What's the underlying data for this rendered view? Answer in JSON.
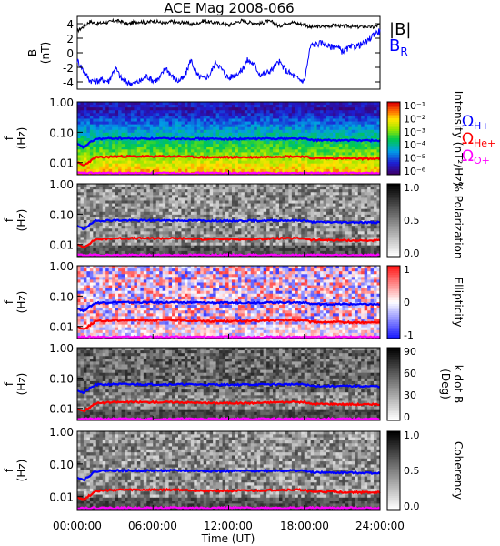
{
  "title": "ACE Mag 2008-066",
  "time_axis": {
    "label": "Time (UT)",
    "ticks": [
      "00:00:00",
      "06:00:00",
      "12:00:00",
      "18:00:00",
      "24:00:00"
    ],
    "range_hours": [
      0,
      24
    ]
  },
  "legend_b": {
    "total": "|B|",
    "radial": "B",
    "radial_sub": "R",
    "total_color": "#000000",
    "radial_color": "#0000ff"
  },
  "legend_cyclotron": [
    {
      "symbol": "Ω",
      "sub": "H+",
      "color": "#0000ff"
    },
    {
      "symbol": "Ω",
      "sub": "He+",
      "color": "#ff0000"
    },
    {
      "symbol": "Ω",
      "sub": "O+",
      "color": "#ff00ff"
    }
  ],
  "chart_data": [
    {
      "type": "line",
      "panel": "magnetic-field",
      "ylabel": "B",
      "yunit": "(nT)",
      "yticks": [
        "4",
        "2",
        "0",
        "-2",
        "-4"
      ],
      "ylim": [
        -5,
        5
      ],
      "series": [
        {
          "name": "|B|",
          "color": "#000000",
          "x": [
            0,
            0.5,
            1,
            1.5,
            2,
            2.5,
            3,
            3.5,
            4,
            4.5,
            5,
            5.5,
            6,
            6.5,
            7,
            7.5,
            8,
            8.5,
            9,
            9.5,
            10,
            10.5,
            11,
            11.5,
            12,
            12.5,
            13,
            13.5,
            14,
            14.5,
            15,
            15.5,
            16,
            16.5,
            17,
            17.5,
            18,
            18.5,
            19,
            19.5,
            20,
            20.5,
            21,
            21.5,
            22,
            22.5,
            23,
            23.5,
            24
          ],
          "values": [
            3.0,
            3.6,
            4.3,
            4.0,
            4.1,
            4.2,
            4.4,
            4.3,
            3.9,
            4.2,
            4.3,
            4.1,
            4.4,
            4.2,
            4.0,
            4.3,
            4.1,
            4.2,
            3.9,
            4.0,
            4.4,
            4.2,
            4.1,
            4.0,
            3.8,
            4.1,
            4.4,
            4.2,
            4.1,
            4.0,
            4.3,
            4.2,
            3.6,
            4.1,
            4.2,
            4.0,
            3.9,
            3.5,
            3.6,
            3.6,
            3.7,
            3.8,
            3.6,
            3.7,
            3.5,
            3.6,
            3.6,
            3.5,
            3.9
          ]
        },
        {
          "name": "B_R",
          "color": "#0000ff",
          "x": [
            0,
            0.5,
            1,
            1.5,
            2,
            2.5,
            3,
            3.5,
            4,
            4.5,
            5,
            5.5,
            6,
            6.5,
            7,
            7.5,
            8,
            8.5,
            9,
            9.5,
            10,
            10.5,
            11,
            11.5,
            12,
            12.5,
            13,
            13.5,
            14,
            14.5,
            15,
            15.5,
            16,
            16.5,
            17,
            17.5,
            18,
            18.5,
            19,
            19.5,
            20,
            20.5,
            21,
            21.5,
            22,
            22.5,
            23,
            23.5,
            24
          ],
          "values": [
            -1.0,
            -2.5,
            -3.8,
            -3.9,
            -3.7,
            -3.9,
            -2.0,
            -3.6,
            -4.1,
            -4.2,
            -3.9,
            -3.2,
            -3.8,
            -3.6,
            -2.0,
            -3.2,
            -3.9,
            -3.4,
            -0.9,
            -3.1,
            -3.6,
            -3.0,
            -1.2,
            -2.4,
            -3.5,
            -3.0,
            -2.5,
            -1.0,
            -1.6,
            -3.0,
            -2.8,
            -2.2,
            -1.2,
            -2.4,
            -3.0,
            -3.6,
            -3.9,
            1.0,
            1.2,
            1.4,
            0.8,
            0.9,
            0.2,
            0.6,
            0.9,
            1.1,
            1.5,
            2.6,
            3.0
          ]
        }
      ]
    },
    {
      "type": "heatmap",
      "panel": "power-spectrum",
      "ylabel": "f",
      "yunit": "(Hz)",
      "yscale": "log",
      "ylim": [
        0.004,
        1.0
      ],
      "yticks": [
        "1.00",
        "0.10",
        "0.01"
      ],
      "colorbar": {
        "label": "Intensity (nT²/Hz)",
        "scale": "log",
        "ticks": [
          "10⁻¹",
          "10⁻²",
          "10⁻³",
          "10⁻⁴",
          "10⁻⁵",
          "10⁻⁶"
        ],
        "palette": "rainbow"
      }
    },
    {
      "type": "heatmap",
      "panel": "polarization",
      "ylabel": "f",
      "yunit": "(Hz)",
      "yscale": "log",
      "ylim": [
        0.004,
        1.0
      ],
      "yticks": [
        "1.00",
        "0.10",
        "0.01"
      ],
      "colorbar": {
        "label": "% Polarization",
        "ticks": [
          "1.0",
          "0.5",
          "0.0"
        ],
        "range": [
          0,
          1
        ],
        "palette": "gray"
      }
    },
    {
      "type": "heatmap",
      "panel": "ellipticity",
      "ylabel": "f",
      "yunit": "(Hz)",
      "yscale": "log",
      "ylim": [
        0.004,
        1.0
      ],
      "yticks": [
        "1.00",
        "0.10",
        "0.01"
      ],
      "colorbar": {
        "label": "Ellipticity",
        "ticks": [
          "1",
          "0",
          "-1"
        ],
        "range": [
          -1,
          1
        ],
        "palette": "blue-white-red"
      }
    },
    {
      "type": "heatmap",
      "panel": "k-dot-b",
      "ylabel": "f",
      "yunit": "(Hz)",
      "yscale": "log",
      "ylim": [
        0.004,
        1.0
      ],
      "yticks": [
        "1.00",
        "0.10",
        "0.01"
      ],
      "colorbar": {
        "label": "k dot B",
        "unit": "(Deg)",
        "ticks": [
          "90",
          "60",
          "30",
          "0"
        ],
        "range": [
          0,
          90
        ],
        "palette": "gray"
      }
    },
    {
      "type": "heatmap",
      "panel": "coherency",
      "ylabel": "f",
      "yunit": "(Hz)",
      "yscale": "log",
      "ylim": [
        0.004,
        1.0
      ],
      "yticks": [
        "1.00",
        "0.10",
        "0.01"
      ],
      "colorbar": {
        "label": "Coherency",
        "ticks": [
          "1.0",
          "0.5",
          "0.0"
        ],
        "range": [
          0,
          1
        ],
        "palette": "gray"
      }
    }
  ],
  "cyclotron_lines": {
    "x": [
      0,
      0.5,
      1,
      1.5,
      2,
      3,
      4,
      6,
      8,
      10,
      12,
      14,
      16,
      18,
      18.5,
      20,
      22,
      24
    ],
    "H+": [
      0.04,
      0.032,
      0.045,
      0.06,
      0.061,
      0.063,
      0.062,
      0.062,
      0.062,
      0.061,
      0.06,
      0.061,
      0.062,
      0.062,
      0.055,
      0.054,
      0.054,
      0.053
    ],
    "He+": [
      0.01,
      0.008,
      0.011,
      0.015,
      0.015,
      0.016,
      0.016,
      0.016,
      0.016,
      0.015,
      0.015,
      0.015,
      0.016,
      0.016,
      0.014,
      0.014,
      0.0135,
      0.0135
    ],
    "O+": [
      0.0046,
      0.0045,
      0.0045,
      0.0045,
      0.0045,
      0.0045,
      0.0045,
      0.0045,
      0.0045,
      0.0045,
      0.0045,
      0.0045,
      0.0045,
      0.0045,
      0.0045,
      0.0045,
      0.0045,
      0.0045
    ]
  }
}
